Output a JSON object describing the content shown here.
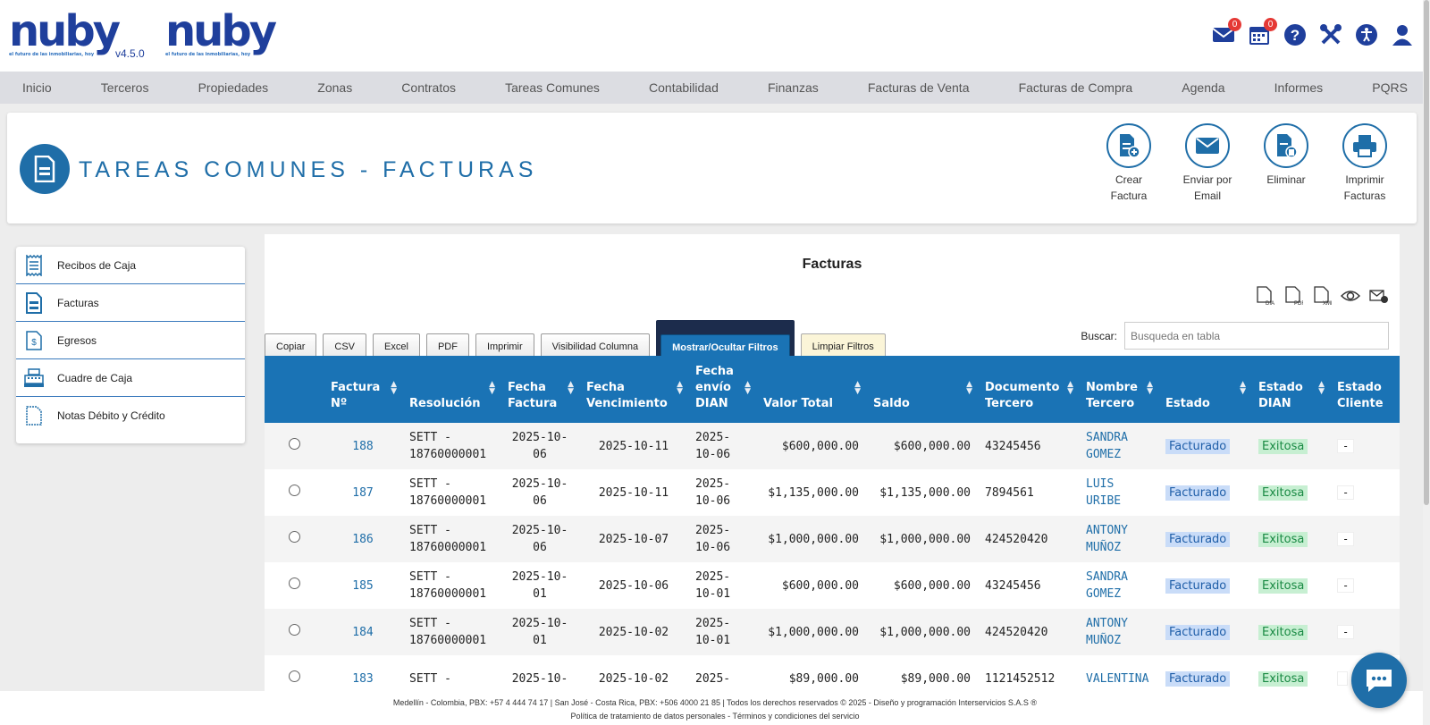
{
  "header": {
    "logo_text": "nuby",
    "logo_tagline": "el futuro de las inmobiliarias, hoy",
    "version": "v4.5.0",
    "mail_count": "0",
    "calendar_count": "0"
  },
  "nav": [
    "Inicio",
    "Terceros",
    "Propiedades",
    "Zonas",
    "Contratos",
    "Tareas Comunes",
    "Contabilidad",
    "Finanzas",
    "Facturas de Venta",
    "Facturas de Compra",
    "Agenda",
    "Informes",
    "PQRS"
  ],
  "page": {
    "title": "TAREAS COMUNES - FACTURAS",
    "actions": [
      {
        "label": "Crear Factura",
        "icon": "create-invoice-icon"
      },
      {
        "label": "Enviar por Email",
        "icon": "email-icon"
      },
      {
        "label": "Eliminar",
        "icon": "delete-icon"
      },
      {
        "label": "Imprimir Facturas",
        "icon": "printer-icon"
      }
    ]
  },
  "sidebar": [
    {
      "label": "Recibos de Caja",
      "icon": "receipt-icon"
    },
    {
      "label": "Facturas",
      "icon": "invoice-icon"
    },
    {
      "label": "Egresos",
      "icon": "expense-icon"
    },
    {
      "label": "Cuadre de Caja",
      "icon": "cash-register-icon"
    },
    {
      "label": "Notas Débito y Crédito",
      "icon": "notes-icon"
    }
  ],
  "table": {
    "title": "Facturas",
    "export_icons": [
      "dian-file-icon",
      "pdf-file-icon",
      "xml-file-icon",
      "eye-icon",
      "send-mail-icon"
    ],
    "buttons": {
      "copy": "Copiar",
      "csv": "CSV",
      "excel": "Excel",
      "pdf": "PDF",
      "print": "Imprimir",
      "columns": "Visibilidad Columna",
      "filters": "Mostrar/Ocultar Filtros",
      "clear": "Limpiar Filtros"
    },
    "search_label": "Buscar:",
    "search_placeholder": "Busqueda en tabla",
    "columns": [
      "",
      "Factura Nº",
      "Resolución",
      "Fecha Factura",
      "Fecha Vencimiento",
      "Fecha envío DIAN",
      "Valor Total",
      "Saldo",
      "Documento Tercero",
      "Nombre Tercero",
      "Estado",
      "Estado DIAN",
      "Estado Cliente"
    ],
    "rows": [
      {
        "num": "188",
        "res": "SETT - 18760000001",
        "fecha": "2025-10-06",
        "venc": "2025-10-11",
        "dian": "2025-10-06",
        "total": "$600,000.00",
        "saldo": "$600,000.00",
        "doc": "43245456",
        "nombre": "SANDRA GOMEZ",
        "estado": "Facturado",
        "estado_dian": "Exitosa",
        "cliente": "-"
      },
      {
        "num": "187",
        "res": "SETT - 18760000001",
        "fecha": "2025-10-06",
        "venc": "2025-10-11",
        "dian": "2025-10-06",
        "total": "$1,135,000.00",
        "saldo": "$1,135,000.00",
        "doc": "7894561",
        "nombre": "LUIS URIBE",
        "estado": "Facturado",
        "estado_dian": "Exitosa",
        "cliente": "-"
      },
      {
        "num": "186",
        "res": "SETT - 18760000001",
        "fecha": "2025-10-06",
        "venc": "2025-10-07",
        "dian": "2025-10-06",
        "total": "$1,000,000.00",
        "saldo": "$1,000,000.00",
        "doc": "424520420",
        "nombre": "ANTONY MUÑOZ",
        "estado": "Facturado",
        "estado_dian": "Exitosa",
        "cliente": "-"
      },
      {
        "num": "185",
        "res": "SETT - 18760000001",
        "fecha": "2025-10-01",
        "venc": "2025-10-06",
        "dian": "2025-10-01",
        "total": "$600,000.00",
        "saldo": "$600,000.00",
        "doc": "43245456",
        "nombre": "SANDRA GOMEZ",
        "estado": "Facturado",
        "estado_dian": "Exitosa",
        "cliente": "-"
      },
      {
        "num": "184",
        "res": "SETT - 18760000001",
        "fecha": "2025-10-01",
        "venc": "2025-10-02",
        "dian": "2025-10-01",
        "total": "$1,000,000.00",
        "saldo": "$1,000,000.00",
        "doc": "424520420",
        "nombre": "ANTONY MUÑOZ",
        "estado": "Facturado",
        "estado_dian": "Exitosa",
        "cliente": "-"
      },
      {
        "num": "183",
        "res": "SETT -",
        "fecha": "2025-10-",
        "venc": "2025-10-02",
        "dian": "2025-",
        "total": "$89,000.00",
        "saldo": "$89,000.00",
        "doc": "1121452512",
        "nombre": "VALENTINA",
        "estado": "Facturado",
        "estado_dian": "Exitosa",
        "cliente": ""
      }
    ]
  },
  "footer": {
    "line1": "Medellín - Colombia, PBX: +57 4 444 74 17 | San José - Costa Rica, PBX: +506 4000 21 85 | Todos los derechos reservados © 2025 - Diseño y programación Interservicios S.A.S ®",
    "line2": "Política de tratamiento de datos personales - Términos y condiciones del servicio"
  },
  "colors": {
    "primary": "#1f6ea8",
    "header_blue": "#1a73b5",
    "logo": "#1f3f9c",
    "badge": "#e53935"
  }
}
